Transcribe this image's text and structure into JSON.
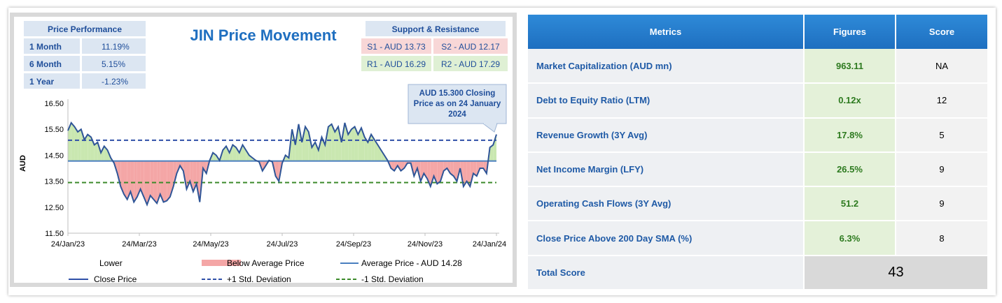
{
  "chart_data": {
    "type": "line",
    "title": "JIN Price Movement",
    "ylabel": "AUD",
    "ylim": [
      11.5,
      16.5
    ],
    "yticks": [
      "16.50",
      "15.50",
      "14.50",
      "13.50",
      "12.50",
      "11.50"
    ],
    "xticks": [
      "24/Jan/23",
      "24/Mar/23",
      "24/May/23",
      "24/Jul/23",
      "24/Sep/23",
      "24/Nov/23",
      "24/Jan/24"
    ],
    "average": 14.28,
    "plus_std": 15.08,
    "minus_std": 13.45,
    "series": [
      {
        "name": "Close Price",
        "values": [
          15.45,
          15.75,
          15.6,
          15.4,
          15.5,
          15.1,
          15.3,
          15.2,
          14.9,
          15.0,
          14.6,
          14.85,
          14.7,
          14.4,
          14.2,
          13.8,
          13.3,
          13.0,
          12.8,
          13.1,
          12.7,
          12.9,
          13.2,
          12.9,
          12.6,
          12.95,
          12.8,
          12.65,
          13.0,
          12.7,
          12.75,
          12.9,
          13.3,
          13.8,
          14.1,
          13.9,
          13.2,
          13.5,
          13.1,
          13.4,
          12.7,
          14.0,
          13.8,
          14.3,
          14.6,
          14.5,
          14.3,
          14.7,
          14.85,
          14.6,
          14.9,
          14.8,
          14.6,
          14.9,
          14.7,
          14.5,
          14.4,
          14.3,
          14.25,
          13.9,
          14.1,
          14.3,
          14.25,
          13.7,
          13.5,
          14.2,
          14.5,
          14.4,
          15.5,
          14.9,
          15.7,
          15.0,
          15.6,
          15.4,
          14.8,
          15.0,
          14.7,
          15.2,
          14.9,
          15.6,
          15.7,
          15.4,
          15.6,
          15.0,
          15.75,
          15.3,
          15.5,
          15.6,
          15.3,
          15.55,
          15.2,
          15.0,
          15.3,
          15.1,
          14.9,
          14.7,
          14.5,
          14.3,
          14.0,
          13.9,
          14.1,
          13.9,
          14.0,
          14.2,
          14.2,
          13.7,
          14.0,
          13.5,
          13.8,
          13.6,
          13.3,
          13.7,
          13.4,
          13.5,
          13.9,
          14.0,
          13.8,
          13.7,
          13.5,
          14.0,
          13.3,
          13.5,
          13.3,
          13.8,
          13.7,
          14.0,
          14.0,
          13.8,
          14.8,
          14.9,
          15.3
        ]
      }
    ],
    "legend": {
      "lower": "Lower",
      "below_avg": "Below Average Price",
      "avg": "Average Price - AUD 14.28",
      "close": "Close Price",
      "plus_std": "+1 Std. Deviation",
      "minus_std": "-1 Std. Deviation"
    },
    "callout": [
      "AUD 15.300 Closing",
      "Price as on  24 January",
      "2024"
    ]
  },
  "price_performance": {
    "title": "Price Performance",
    "rows": [
      {
        "label": "1 Month",
        "value": "11.19%"
      },
      {
        "label": "6 Month",
        "value": "5.15%"
      },
      {
        "label": "1 Year",
        "value": "-1.23%"
      }
    ]
  },
  "support_resistance": {
    "title": "Support & Resistance",
    "s1": "S1 - AUD 13.73",
    "s2": "S2 - AUD 12.17",
    "r1": "R1 - AUD 16.29",
    "r2": "R2 - AUD 17.29"
  },
  "metrics_table": {
    "headers": [
      "Metrics",
      "Figures",
      "Score"
    ],
    "rows": [
      {
        "metric": "Market Capitalization (AUD mn)",
        "figure": "963.11",
        "score": "NA"
      },
      {
        "metric": "Debt to Equity Ratio (LTM)",
        "figure": "0.12x",
        "score": "12"
      },
      {
        "metric": "Revenue Growth (3Y Avg)",
        "figure": "17.8%",
        "score": "5"
      },
      {
        "metric": "Net Income Margin (LFY)",
        "figure": "26.5%",
        "score": "9"
      },
      {
        "metric": "Operating Cash Flows (3Y Avg)",
        "figure": "51.2",
        "score": "9"
      },
      {
        "metric": "Close Price Above 200 Day SMA (%)",
        "figure": "6.3%",
        "score": "8"
      }
    ],
    "total_label": "Total Score",
    "total_value": "43"
  },
  "colors": {
    "accent_blue": "#2f5597",
    "above_fill": "#c9e7b0",
    "below_fill": "#f4a6a6",
    "plus_line": "#2f4fa8",
    "minus_line": "#3b8a2a",
    "avg_line": "#4a7fbf"
  }
}
